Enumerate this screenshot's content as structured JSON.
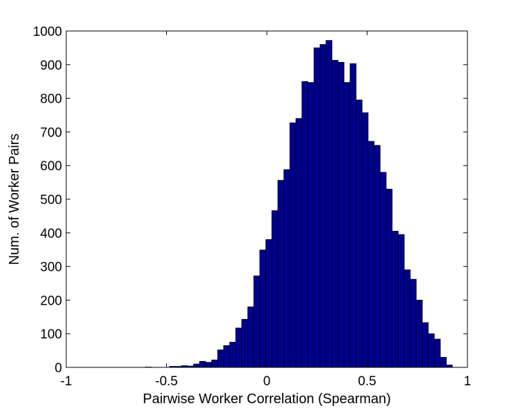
{
  "chart_data": {
    "type": "bar",
    "subtype": "histogram",
    "title": "",
    "xlabel": "Pairwise Worker Correlation (Spearman)",
    "ylabel": "Num. of Worker Pairs",
    "xlim": [
      -1,
      1
    ],
    "ylim": [
      0,
      1000
    ],
    "xticks": [
      "-1",
      "-0.5",
      "0",
      "0.5",
      "1"
    ],
    "yticks": [
      "0",
      "100",
      "200",
      "300",
      "400",
      "500",
      "600",
      "700",
      "800",
      "900",
      "1000"
    ],
    "grid": false,
    "bin_width": 0.03,
    "bar_color": "#00008f",
    "edge_color": "#000000",
    "bins": [
      {
        "x": -0.59,
        "y": 1
      },
      {
        "x": -0.47,
        "y": 3
      },
      {
        "x": -0.44,
        "y": 3
      },
      {
        "x": -0.41,
        "y": 5
      },
      {
        "x": -0.38,
        "y": 4
      },
      {
        "x": -0.35,
        "y": 10
      },
      {
        "x": -0.32,
        "y": 18
      },
      {
        "x": -0.29,
        "y": 15
      },
      {
        "x": -0.26,
        "y": 22
      },
      {
        "x": -0.23,
        "y": 52
      },
      {
        "x": -0.2,
        "y": 65
      },
      {
        "x": -0.17,
        "y": 75
      },
      {
        "x": -0.14,
        "y": 117
      },
      {
        "x": -0.11,
        "y": 143
      },
      {
        "x": -0.08,
        "y": 180
      },
      {
        "x": -0.05,
        "y": 272
      },
      {
        "x": -0.02,
        "y": 349
      },
      {
        "x": 0.01,
        "y": 380
      },
      {
        "x": 0.04,
        "y": 466
      },
      {
        "x": 0.07,
        "y": 556
      },
      {
        "x": 0.1,
        "y": 588
      },
      {
        "x": 0.13,
        "y": 727
      },
      {
        "x": 0.16,
        "y": 740
      },
      {
        "x": 0.19,
        "y": 850
      },
      {
        "x": 0.22,
        "y": 847
      },
      {
        "x": 0.25,
        "y": 950
      },
      {
        "x": 0.28,
        "y": 960
      },
      {
        "x": 0.31,
        "y": 972
      },
      {
        "x": 0.34,
        "y": 913
      },
      {
        "x": 0.37,
        "y": 907
      },
      {
        "x": 0.4,
        "y": 847
      },
      {
        "x": 0.43,
        "y": 903
      },
      {
        "x": 0.46,
        "y": 795
      },
      {
        "x": 0.49,
        "y": 757
      },
      {
        "x": 0.52,
        "y": 672
      },
      {
        "x": 0.55,
        "y": 660
      },
      {
        "x": 0.58,
        "y": 580
      },
      {
        "x": 0.61,
        "y": 530
      },
      {
        "x": 0.64,
        "y": 405
      },
      {
        "x": 0.67,
        "y": 395
      },
      {
        "x": 0.7,
        "y": 290
      },
      {
        "x": 0.73,
        "y": 262
      },
      {
        "x": 0.76,
        "y": 200
      },
      {
        "x": 0.79,
        "y": 133
      },
      {
        "x": 0.82,
        "y": 100
      },
      {
        "x": 0.85,
        "y": 84
      },
      {
        "x": 0.88,
        "y": 30
      },
      {
        "x": 0.91,
        "y": 7
      }
    ]
  }
}
